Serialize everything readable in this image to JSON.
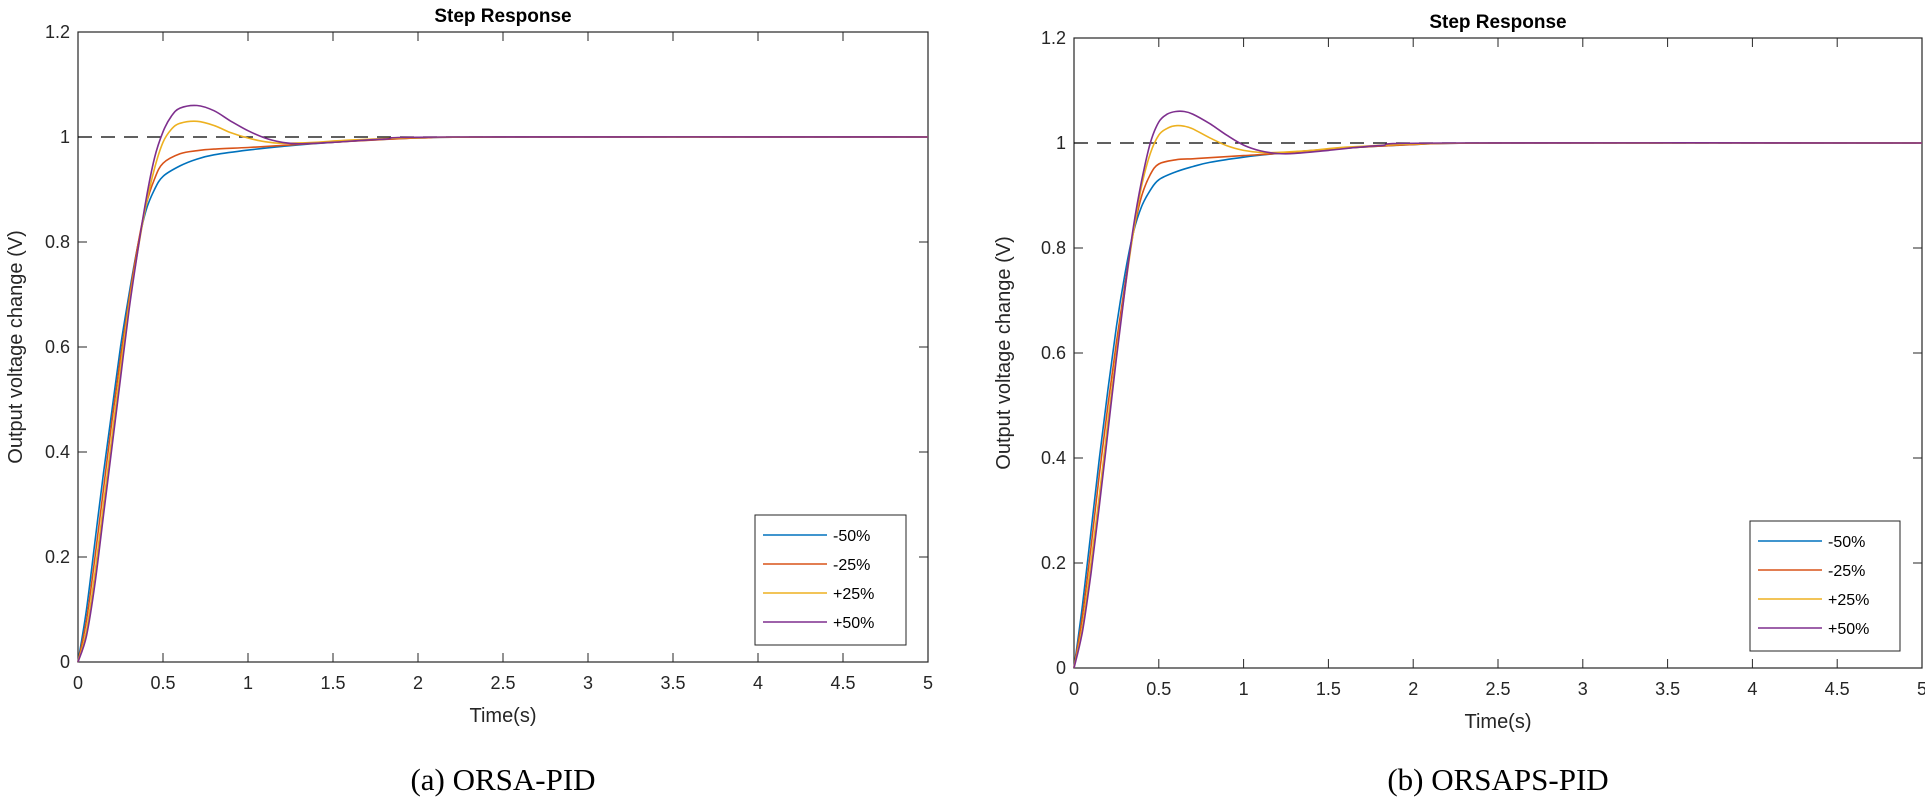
{
  "chart_data": [
    {
      "type": "line",
      "title": "Step Response",
      "xlabel": "Time(s)",
      "ylabel": "Output voltage change (V)",
      "caption": "(a) ORSA-PID",
      "xlim": [
        0,
        5
      ],
      "ylim": [
        0,
        1.2
      ],
      "xticks": [
        "0",
        "0.5",
        "1",
        "1.5",
        "2",
        "2.5",
        "3",
        "3.5",
        "4",
        "4.5",
        "5"
      ],
      "yticks": [
        "0",
        "0.2",
        "0.4",
        "0.6",
        "0.8",
        "1",
        "1.2"
      ],
      "grid": false,
      "legend_position": "bottom-right",
      "reference_line": {
        "y": 1,
        "style": "dashed",
        "color": "#000000"
      },
      "series": [
        {
          "name": "-50%",
          "color": "#0072BD",
          "x": [
            0,
            0.05,
            0.1,
            0.15,
            0.2,
            0.25,
            0.3,
            0.35,
            0.4,
            0.45,
            0.5,
            0.6,
            0.7,
            0.8,
            1.0,
            1.2,
            1.5,
            2,
            2.5,
            5
          ],
          "y": [
            0,
            0.1,
            0.23,
            0.36,
            0.48,
            0.6,
            0.7,
            0.79,
            0.86,
            0.9,
            0.925,
            0.945,
            0.958,
            0.966,
            0.975,
            0.982,
            0.99,
            0.998,
            1,
            1
          ]
        },
        {
          "name": "-25%",
          "color": "#D95319",
          "x": [
            0,
            0.05,
            0.1,
            0.15,
            0.2,
            0.25,
            0.3,
            0.35,
            0.4,
            0.45,
            0.5,
            0.6,
            0.7,
            0.8,
            1.0,
            1.2,
            1.5,
            2,
            2.5,
            5
          ],
          "y": [
            0,
            0.08,
            0.2,
            0.33,
            0.46,
            0.58,
            0.69,
            0.79,
            0.87,
            0.92,
            0.95,
            0.968,
            0.974,
            0.977,
            0.98,
            0.984,
            0.99,
            0.998,
            1,
            1
          ]
        },
        {
          "name": "+25%",
          "color": "#EDB120",
          "x": [
            0,
            0.05,
            0.1,
            0.15,
            0.2,
            0.25,
            0.3,
            0.35,
            0.4,
            0.45,
            0.5,
            0.55,
            0.6,
            0.7,
            0.8,
            0.9,
            1.0,
            1.1,
            1.2,
            1.4,
            1.6,
            2,
            2.5,
            5
          ],
          "y": [
            0,
            0.06,
            0.17,
            0.3,
            0.43,
            0.56,
            0.68,
            0.78,
            0.87,
            0.94,
            0.99,
            1.015,
            1.026,
            1.03,
            1.022,
            1.008,
            0.998,
            0.991,
            0.988,
            0.99,
            0.994,
            0.999,
            1,
            1
          ]
        },
        {
          "name": "+50%",
          "color": "#7E2F8E",
          "x": [
            0,
            0.05,
            0.1,
            0.15,
            0.2,
            0.25,
            0.3,
            0.35,
            0.4,
            0.45,
            0.5,
            0.55,
            0.6,
            0.7,
            0.8,
            0.9,
            1.0,
            1.1,
            1.2,
            1.3,
            1.5,
            1.8,
            2.2,
            5
          ],
          "y": [
            0,
            0.05,
            0.15,
            0.28,
            0.41,
            0.54,
            0.67,
            0.78,
            0.88,
            0.96,
            1.01,
            1.04,
            1.055,
            1.06,
            1.05,
            1.03,
            1.012,
            0.998,
            0.99,
            0.987,
            0.99,
            0.996,
            1,
            1
          ]
        }
      ]
    },
    {
      "type": "line",
      "title": "Step Response",
      "xlabel": "Time(s)",
      "ylabel": "Output voltage change (V)",
      "caption": "(b) ORSAPS-PID",
      "xlim": [
        0,
        5
      ],
      "ylim": [
        0,
        1.2
      ],
      "xticks": [
        "0",
        "0.5",
        "1",
        "1.5",
        "2",
        "2.5",
        "3",
        "3.5",
        "4",
        "4.5",
        "5"
      ],
      "yticks": [
        "0",
        "0.2",
        "0.4",
        "0.6",
        "0.8",
        "1",
        "1.2"
      ],
      "grid": false,
      "legend_position": "bottom-right",
      "reference_line": {
        "y": 1,
        "style": "dashed",
        "color": "#000000"
      },
      "series": [
        {
          "name": "-50%",
          "color": "#0072BD",
          "x": [
            0,
            0.05,
            0.1,
            0.15,
            0.2,
            0.25,
            0.3,
            0.35,
            0.4,
            0.45,
            0.5,
            0.6,
            0.7,
            0.8,
            1.0,
            1.2,
            1.5,
            2,
            2.5,
            5
          ],
          "y": [
            0,
            0.12,
            0.26,
            0.4,
            0.53,
            0.65,
            0.75,
            0.83,
            0.88,
            0.91,
            0.93,
            0.945,
            0.955,
            0.963,
            0.973,
            0.98,
            0.988,
            0.997,
            1,
            1
          ]
        },
        {
          "name": "-25%",
          "color": "#D95319",
          "x": [
            0,
            0.05,
            0.1,
            0.15,
            0.2,
            0.25,
            0.3,
            0.35,
            0.4,
            0.45,
            0.5,
            0.6,
            0.7,
            0.8,
            1.0,
            1.2,
            1.5,
            2,
            2.5,
            5
          ],
          "y": [
            0,
            0.1,
            0.23,
            0.37,
            0.5,
            0.62,
            0.73,
            0.83,
            0.9,
            0.94,
            0.96,
            0.968,
            0.97,
            0.972,
            0.976,
            0.98,
            0.988,
            0.997,
            1,
            1
          ]
        },
        {
          "name": "+25%",
          "color": "#EDB120",
          "x": [
            0,
            0.05,
            0.1,
            0.15,
            0.2,
            0.25,
            0.3,
            0.35,
            0.4,
            0.45,
            0.5,
            0.55,
            0.6,
            0.65,
            0.7,
            0.8,
            0.9,
            1.0,
            1.1,
            1.2,
            1.4,
            1.6,
            2,
            2.5,
            5
          ],
          "y": [
            0,
            0.08,
            0.2,
            0.33,
            0.47,
            0.6,
            0.72,
            0.83,
            0.92,
            0.98,
            1.015,
            1.028,
            1.033,
            1.032,
            1.027,
            1.01,
            0.995,
            0.986,
            0.982,
            0.982,
            0.986,
            0.992,
            0.998,
            1,
            1
          ]
        },
        {
          "name": "+50%",
          "color": "#7E2F8E",
          "x": [
            0,
            0.05,
            0.1,
            0.15,
            0.2,
            0.25,
            0.3,
            0.35,
            0.4,
            0.45,
            0.5,
            0.55,
            0.6,
            0.65,
            0.7,
            0.8,
            0.9,
            1.0,
            1.1,
            1.2,
            1.3,
            1.5,
            1.8,
            2.2,
            5
          ],
          "y": [
            0,
            0.07,
            0.18,
            0.31,
            0.45,
            0.59,
            0.72,
            0.84,
            0.93,
            1.0,
            1.04,
            1.055,
            1.06,
            1.06,
            1.055,
            1.037,
            1.015,
            0.996,
            0.985,
            0.98,
            0.98,
            0.986,
            0.995,
            1,
            1
          ]
        }
      ]
    }
  ]
}
